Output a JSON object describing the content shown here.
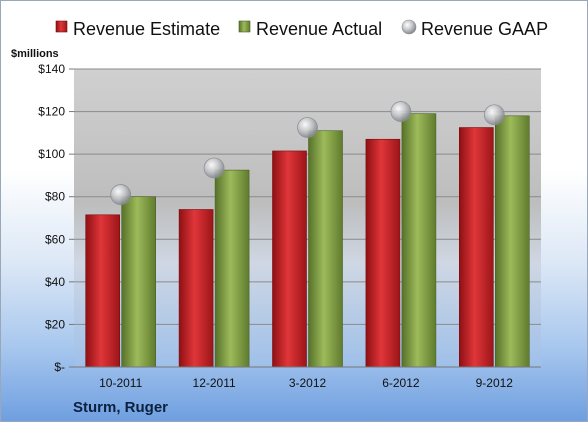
{
  "company": "Sturm, Ruger",
  "colors": {
    "estimate": "#c41f23",
    "actual": "#7c9a3c",
    "gaap": "#b9bcc1"
  },
  "chart_data": {
    "type": "bar",
    "title": "",
    "ylabel": "$millions",
    "xlabel": "",
    "ylim": [
      0,
      140
    ],
    "yticks": [
      {
        "value": 0,
        "label": "$-"
      },
      {
        "value": 20,
        "label": "$20"
      },
      {
        "value": 40,
        "label": "$40"
      },
      {
        "value": 60,
        "label": "$60"
      },
      {
        "value": 80,
        "label": "$80"
      },
      {
        "value": 100,
        "label": "$100"
      },
      {
        "value": 120,
        "label": "$120"
      },
      {
        "value": 140,
        "label": "$140"
      }
    ],
    "categories": [
      "10-2011",
      "12-2011",
      "3-2012",
      "6-2012",
      "9-2012"
    ],
    "legend_position": "top",
    "grid": true,
    "series": [
      {
        "name": "Revenue Estimate",
        "kind": "bar",
        "values": [
          71.5,
          74,
          101.5,
          107,
          112.5
        ]
      },
      {
        "name": "Revenue Actual",
        "kind": "bar",
        "values": [
          80,
          92.5,
          111,
          119,
          118
        ]
      },
      {
        "name": "Revenue GAAP",
        "kind": "marker",
        "values": [
          81,
          93.5,
          112.5,
          120,
          118.5
        ]
      }
    ]
  }
}
